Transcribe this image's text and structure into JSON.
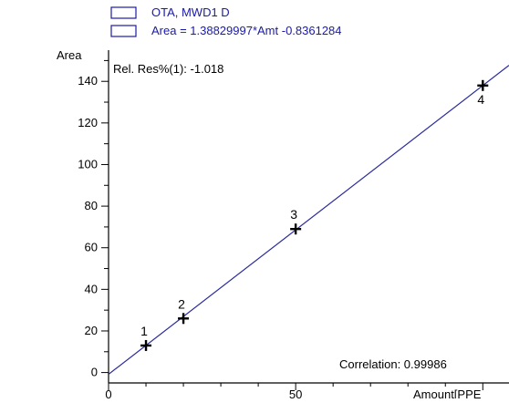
{
  "chart_data": {
    "type": "scatter",
    "legend": [
      {
        "text": "OTA, MWD1 D",
        "color": "#1a1aa8"
      },
      {
        "text": "Area = 1.38829997*Amt -0.8361284",
        "color": "#1a1aa8"
      }
    ],
    "legend_placement": "top-left",
    "annotations": {
      "rel_res": "Rel. Res%(1): -1.018",
      "correlation": "Correlation: 0.99986"
    },
    "ylabel": "Area",
    "xlabel": "Amount[PPE",
    "xlim": [
      0,
      107
    ],
    "ylim": [
      -5,
      155
    ],
    "x_ticks": [
      0,
      50
    ],
    "x_tick_labels": [
      "0",
      "50"
    ],
    "y_ticks": [
      0,
      20,
      40,
      60,
      80,
      100,
      120,
      140
    ],
    "y_tick_labels": [
      "0",
      "20",
      "40",
      "60",
      "80",
      "100",
      "120",
      "140"
    ],
    "series": [
      {
        "points": [
          {
            "x": 10,
            "y": 13,
            "label": "1"
          },
          {
            "x": 20,
            "y": 26,
            "label": "2"
          },
          {
            "x": 50,
            "y": 69,
            "label": "3"
          },
          {
            "x": 100,
            "y": 138,
            "label": "4"
          }
        ]
      }
    ],
    "fit_line": {
      "slope": 1.38829997,
      "intercept": -0.8361284
    },
    "colors": {
      "line": "#2a2a9e",
      "legend": "#1a1aa8",
      "axis": "#000000",
      "points": "#000000"
    },
    "grid": false
  }
}
